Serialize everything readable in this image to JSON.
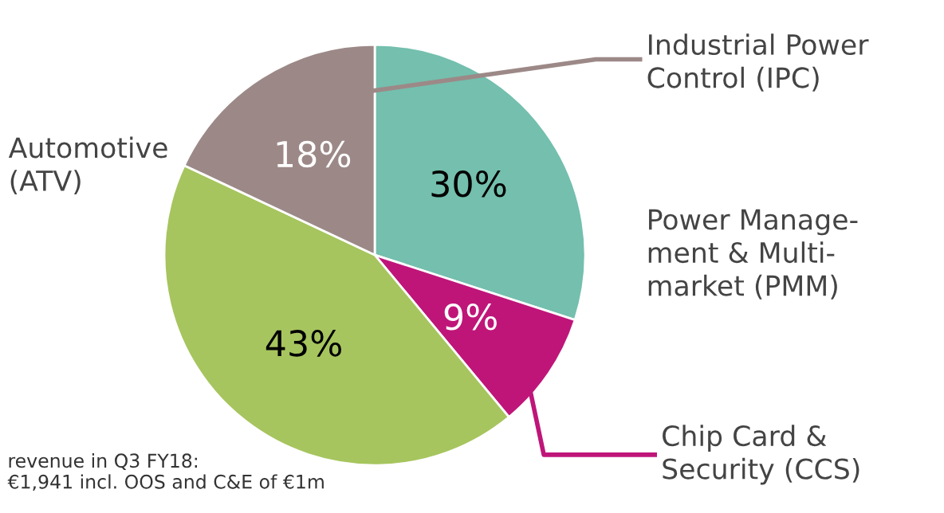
{
  "chart_data": {
    "type": "pie",
    "categories": [
      "Power Manage-\nment & Multi-\nmarket (PMM)",
      "Chip Card &\nSecurity (CCS)",
      "Automotive\n(ATV)",
      "Industrial Power\nControl (IPC)"
    ],
    "values": [
      30,
      9,
      43,
      18
    ],
    "colors": [
      "#74bfae",
      "#bf1579",
      "#a6c55e",
      "#9c8987"
    ],
    "value_labels": [
      "30%",
      "9%",
      "43%",
      "18%"
    ],
    "annotations": [
      "revenue in Q3 FY18:\n€1,941 incl. OOS and C&E of €1m"
    ]
  }
}
